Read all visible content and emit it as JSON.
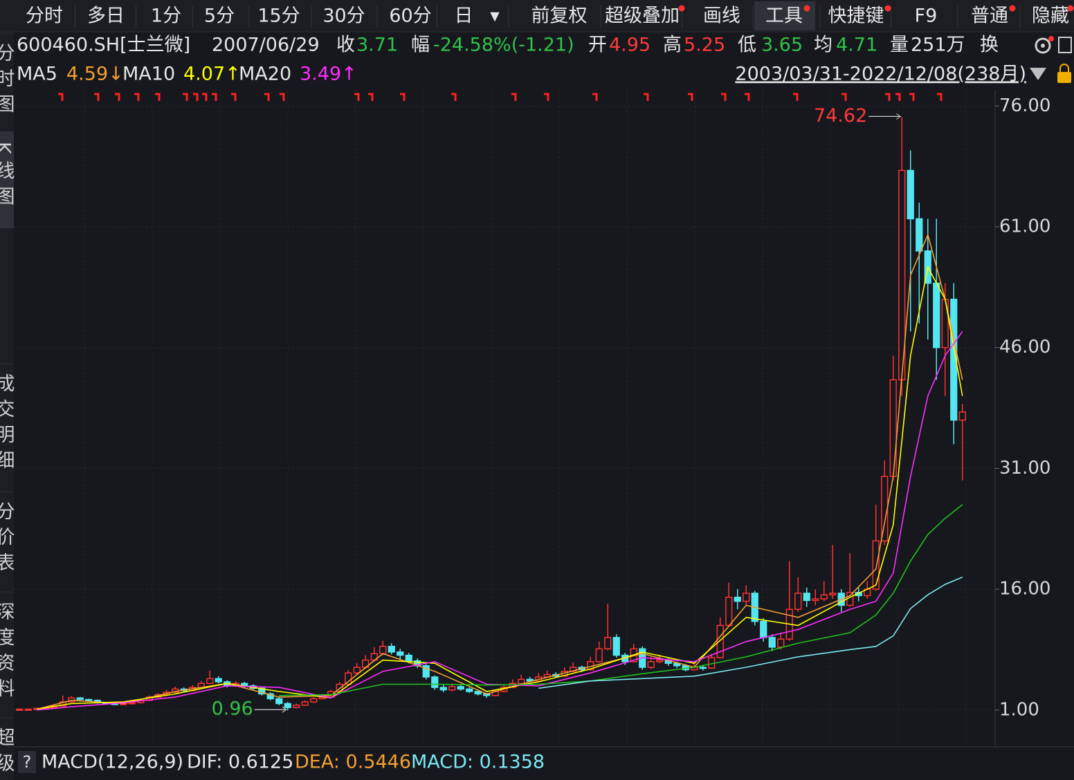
{
  "toolbar": [
    "分时",
    "多日",
    "1分",
    "5分",
    "15分",
    "30分",
    "60分",
    "日",
    "前复权",
    "超级叠加",
    "画线",
    "工具",
    "快捷键",
    "F9",
    "普通",
    "隐藏"
  ],
  "side_tabs": [
    "分时图",
    "K线图",
    "成交明细",
    "分价表",
    "深度资料",
    "超级"
  ],
  "info": {
    "code": "600460.SH[士兰微]",
    "date": "2007/06/29",
    "items": [
      {
        "label": "收",
        "value": "3.71"
      },
      {
        "label": "幅",
        "value": "-24.58%(-1.21)"
      },
      {
        "label": "开",
        "value": "4.95"
      },
      {
        "label": "高",
        "value": "5.25"
      },
      {
        "label": "低",
        "value": "3.65"
      },
      {
        "label": "均",
        "value": "4.71"
      },
      {
        "label": "量",
        "value": "251万"
      }
    ],
    "turnover": "换"
  },
  "range": "2003/03/31-2022/12/08(238月)",
  "macd": {
    "name": "MACD(12,26,9)",
    "dif": "DIF: 0.6125",
    "dea": "DEA: 0.5446",
    "macd": "MACD: 0.1358"
  },
  "chart_data": {
    "type": "candlestick",
    "up_color": "#ff3232",
    "down_color": "#54e6f0",
    "ylim": [
      -3.4,
      78
    ],
    "yticks": [
      {
        "value": 76,
        "label": "76.00"
      },
      {
        "value": 61,
        "label": "61.00"
      },
      {
        "value": 46,
        "label": "46.00"
      },
      {
        "value": 31,
        "label": "31.00"
      },
      {
        "value": 16,
        "label": "16.00"
      },
      {
        "value": 1,
        "label": "1.00"
      }
    ],
    "ohlc": [
      [
        1.0,
        1.2,
        0.98,
        1.1
      ],
      [
        1.1,
        1.2,
        1.05,
        1.1
      ],
      [
        1.1,
        1.3,
        1.05,
        1.2
      ],
      [
        1.2,
        1.4,
        1.15,
        1.3
      ],
      [
        1.3,
        1.6,
        1.25,
        1.5
      ],
      [
        1.5,
        2.8,
        1.45,
        2.0
      ],
      [
        2.0,
        2.7,
        1.9,
        2.5
      ],
      [
        2.5,
        2.6,
        2.2,
        2.3
      ],
      [
        2.3,
        2.4,
        2.1,
        2.2
      ],
      [
        2.2,
        2.3,
        1.8,
        1.9
      ],
      [
        1.9,
        2.0,
        1.7,
        1.8
      ],
      [
        1.8,
        1.9,
        1.6,
        1.7
      ],
      [
        1.7,
        1.9,
        1.6,
        1.8
      ],
      [
        1.8,
        2.0,
        1.7,
        1.9
      ],
      [
        1.9,
        2.4,
        1.8,
        2.2
      ],
      [
        2.2,
        2.8,
        2.1,
        2.6
      ],
      [
        2.6,
        3.1,
        2.5,
        2.9
      ],
      [
        2.9,
        3.5,
        2.8,
        3.2
      ],
      [
        3.2,
        3.9,
        3.1,
        3.6
      ],
      [
        3.6,
        3.8,
        3.2,
        3.4
      ],
      [
        3.4,
        4.1,
        3.3,
        3.8
      ],
      [
        3.8,
        4.6,
        3.7,
        4.3
      ],
      [
        4.3,
        5.9,
        4.2,
        4.9
      ],
      [
        4.9,
        5.2,
        4.3,
        4.5
      ],
      [
        4.5,
        4.7,
        3.8,
        4.0
      ],
      [
        4.0,
        4.6,
        3.9,
        4.3
      ],
      [
        4.3,
        4.5,
        3.8,
        4.0
      ],
      [
        4.0,
        4.2,
        3.5,
        3.7
      ],
      [
        3.7,
        3.9,
        2.8,
        3.0
      ],
      [
        3.0,
        3.2,
        2.2,
        2.4
      ],
      [
        2.4,
        2.6,
        1.6,
        1.8
      ],
      [
        1.8,
        2.0,
        0.96,
        1.3
      ],
      [
        1.3,
        1.8,
        1.2,
        1.6
      ],
      [
        1.6,
        2.2,
        1.5,
        2.0
      ],
      [
        2.0,
        2.6,
        1.9,
        2.4
      ],
      [
        2.4,
        2.8,
        2.3,
        2.6
      ],
      [
        2.6,
        3.5,
        2.5,
        3.3
      ],
      [
        3.3,
        4.5,
        3.2,
        4.2
      ],
      [
        4.2,
        6.0,
        4.1,
        5.6
      ],
      [
        5.6,
        6.8,
        5.4,
        6.3
      ],
      [
        6.3,
        7.8,
        6.1,
        7.2
      ],
      [
        7.2,
        8.8,
        7.0,
        8.0
      ],
      [
        8.0,
        9.6,
        7.8,
        8.9
      ],
      [
        8.9,
        9.3,
        7.9,
        8.2
      ],
      [
        8.2,
        8.6,
        7.3,
        7.8
      ],
      [
        7.8,
        8.1,
        6.8,
        7.1
      ],
      [
        7.1,
        7.4,
        6.2,
        6.5
      ],
      [
        6.5,
        6.7,
        4.8,
        5.1
      ],
      [
        5.1,
        5.3,
        3.5,
        3.8
      ],
      [
        3.8,
        4.1,
        3.2,
        3.5
      ],
      [
        3.5,
        4.3,
        3.3,
        3.9
      ],
      [
        3.9,
        4.1,
        3.4,
        3.6
      ],
      [
        3.6,
        3.8,
        3.1,
        3.3
      ],
      [
        3.3,
        3.5,
        2.8,
        3.0
      ],
      [
        3.0,
        3.1,
        2.5,
        2.8
      ],
      [
        2.8,
        3.5,
        2.7,
        3.3
      ],
      [
        3.3,
        4.1,
        3.2,
        3.8
      ],
      [
        3.8,
        4.8,
        3.7,
        4.3
      ],
      [
        4.3,
        5.4,
        4.2,
        4.8
      ],
      [
        4.8,
        5.1,
        4.4,
        4.6
      ],
      [
        4.6,
        5.6,
        4.5,
        5.1
      ],
      [
        5.1,
        5.9,
        5.0,
        5.4
      ],
      [
        5.4,
        5.7,
        5.0,
        5.2
      ],
      [
        5.2,
        6.3,
        5.1,
        5.8
      ],
      [
        5.8,
        6.9,
        5.7,
        6.3
      ],
      [
        6.3,
        6.5,
        5.7,
        6.0
      ],
      [
        6.0,
        7.6,
        5.9,
        7.0
      ],
      [
        7.0,
        9.5,
        6.9,
        8.6
      ],
      [
        8.6,
        14.2,
        8.4,
        10.0
      ],
      [
        10.0,
        10.4,
        7.5,
        7.8
      ],
      [
        7.8,
        8.1,
        6.6,
        7.0
      ],
      [
        7.0,
        9.2,
        6.9,
        8.6
      ],
      [
        8.6,
        8.9,
        6.0,
        6.3
      ],
      [
        6.3,
        7.6,
        6.1,
        7.0
      ],
      [
        7.0,
        7.9,
        6.8,
        7.2
      ],
      [
        7.2,
        7.4,
        6.5,
        6.8
      ],
      [
        6.8,
        7.0,
        6.2,
        6.5
      ],
      [
        6.5,
        6.7,
        5.8,
        6.0
      ],
      [
        6.0,
        6.8,
        5.9,
        6.3
      ],
      [
        6.3,
        6.6,
        5.9,
        6.2
      ],
      [
        6.2,
        8.0,
        6.1,
        7.5
      ],
      [
        7.5,
        12.5,
        7.4,
        11.5
      ],
      [
        11.5,
        16.8,
        11.3,
        15.0
      ],
      [
        15.0,
        16.0,
        13.5,
        14.5
      ],
      [
        14.5,
        16.5,
        14.0,
        15.5
      ],
      [
        15.5,
        15.8,
        11.5,
        12.0
      ],
      [
        12.0,
        12.4,
        9.5,
        10.0
      ],
      [
        10.0,
        10.4,
        8.3,
        8.8
      ],
      [
        8.8,
        10.6,
        8.5,
        9.8
      ],
      [
        9.8,
        19.5,
        9.6,
        13.5
      ],
      [
        13.5,
        17.5,
        13.2,
        15.5
      ],
      [
        15.5,
        16.2,
        13.8,
        14.6
      ],
      [
        14.6,
        16.0,
        14.0,
        14.8
      ],
      [
        14.8,
        17.0,
        14.5,
        15.3
      ],
      [
        15.3,
        21.5,
        14.8,
        15.5
      ],
      [
        15.5,
        16.0,
        13.2,
        14.0
      ],
      [
        14.0,
        20.5,
        13.8,
        15.6
      ],
      [
        15.6,
        16.2,
        14.5,
        15.2
      ],
      [
        15.2,
        17.0,
        14.8,
        16.0
      ],
      [
        16.0,
        26.5,
        15.8,
        22.0
      ],
      [
        22.0,
        32.0,
        21.5,
        30.0
      ],
      [
        30.0,
        45.0,
        29.5,
        42.0
      ],
      [
        42.0,
        74.62,
        40.0,
        68.0
      ],
      [
        68.0,
        70.5,
        48.0,
        62.0
      ],
      [
        62.0,
        64.0,
        49.0,
        58.0
      ],
      [
        58.0,
        62.0,
        47.0,
        54.0
      ],
      [
        54.0,
        62.0,
        42.0,
        46.0
      ],
      [
        46.0,
        54.0,
        40.0,
        52.0
      ],
      [
        52.0,
        54.0,
        34.0,
        37.0
      ],
      [
        37.0,
        39.0,
        29.5,
        38.0
      ]
    ],
    "line_x": [
      2,
      6,
      12,
      18,
      24,
      30,
      36,
      42,
      48,
      54,
      60,
      66,
      72,
      78,
      84,
      90,
      96,
      99,
      101,
      103,
      105,
      107,
      109
    ],
    "series": [
      {
        "name": "MA5",
        "legend_value": "4.59↓",
        "color": "#f5a032",
        "values": [
          1.1,
          2.2,
          1.8,
          3.3,
          4.3,
          2.6,
          2.8,
          8.0,
          5.8,
          3.0,
          4.8,
          6.4,
          8.0,
          6.3,
          14.0,
          12.5,
          15.2,
          18.5,
          30.0,
          55.0,
          60.0,
          52.0,
          42.0
        ]
      },
      {
        "name": "MA10",
        "legend_value": "4.07↑",
        "color": "#ffff00",
        "values": [
          1.1,
          1.8,
          2.0,
          3.0,
          4.3,
          3.3,
          2.5,
          7.2,
          6.8,
          3.3,
          4.5,
          6.1,
          8.2,
          6.8,
          12.5,
          11.5,
          15.0,
          16.5,
          24.0,
          45.0,
          56.0,
          52.0,
          40.0
        ]
      },
      {
        "name": "MA20",
        "legend_value": "3.49↑",
        "color": "#ff2dff",
        "values": [
          1.0,
          1.4,
          1.9,
          2.6,
          4.0,
          3.8,
          2.5,
          5.8,
          7.0,
          4.2,
          4.0,
          5.6,
          7.5,
          7.0,
          9.5,
          11.0,
          13.5,
          14.5,
          18.0,
          30.0,
          40.0,
          45.0,
          48.0
        ]
      },
      {
        "color": "#1fc21f",
        "values": [
          null,
          null,
          null,
          null,
          null,
          2.8,
          2.9,
          4.2,
          4.2,
          4.1,
          4.2,
          4.6,
          5.5,
          6.3,
          7.6,
          9.3,
          10.6,
          12.8,
          15.5,
          19.5,
          22.8,
          24.8,
          26.5
        ]
      },
      {
        "color": "#7ce8f4",
        "values": [
          null,
          null,
          null,
          null,
          null,
          null,
          null,
          null,
          null,
          null,
          3.7,
          4.6,
          4.9,
          5.2,
          6.3,
          7.6,
          8.5,
          8.9,
          10.2,
          13.6,
          15.3,
          16.6,
          17.5
        ]
      }
    ],
    "annotations": [
      {
        "path": "chart_data.ohlc.102.1",
        "index": 102,
        "color": "#ff3a3a",
        "side": "left"
      },
      {
        "path": "chart_data.ohlc.31.2",
        "index": 31,
        "color": "#2fc24a",
        "side": "left"
      }
    ]
  }
}
